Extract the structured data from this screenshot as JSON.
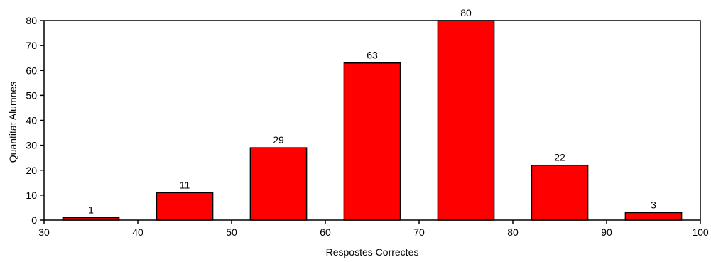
{
  "chart_data": {
    "type": "bar",
    "title": "",
    "xlabel": "Respostes Correctes",
    "ylabel": "Quantitat Alumnes",
    "xlim": [
      30,
      100
    ],
    "ylim": [
      0,
      80
    ],
    "xticks": [
      30,
      40,
      50,
      60,
      70,
      80,
      90,
      100
    ],
    "yticks": [
      0,
      10,
      20,
      30,
      40,
      50,
      60,
      70,
      80
    ],
    "bar_width": 6,
    "bar_color": "#ff0000",
    "edge_color": "#000000",
    "grid": false,
    "bars": [
      {
        "x": 35,
        "value": 1
      },
      {
        "x": 45,
        "value": 11
      },
      {
        "x": 55,
        "value": 29
      },
      {
        "x": 65,
        "value": 63
      },
      {
        "x": 75,
        "value": 80
      },
      {
        "x": 85,
        "value": 22
      },
      {
        "x": 95,
        "value": 3
      }
    ]
  }
}
